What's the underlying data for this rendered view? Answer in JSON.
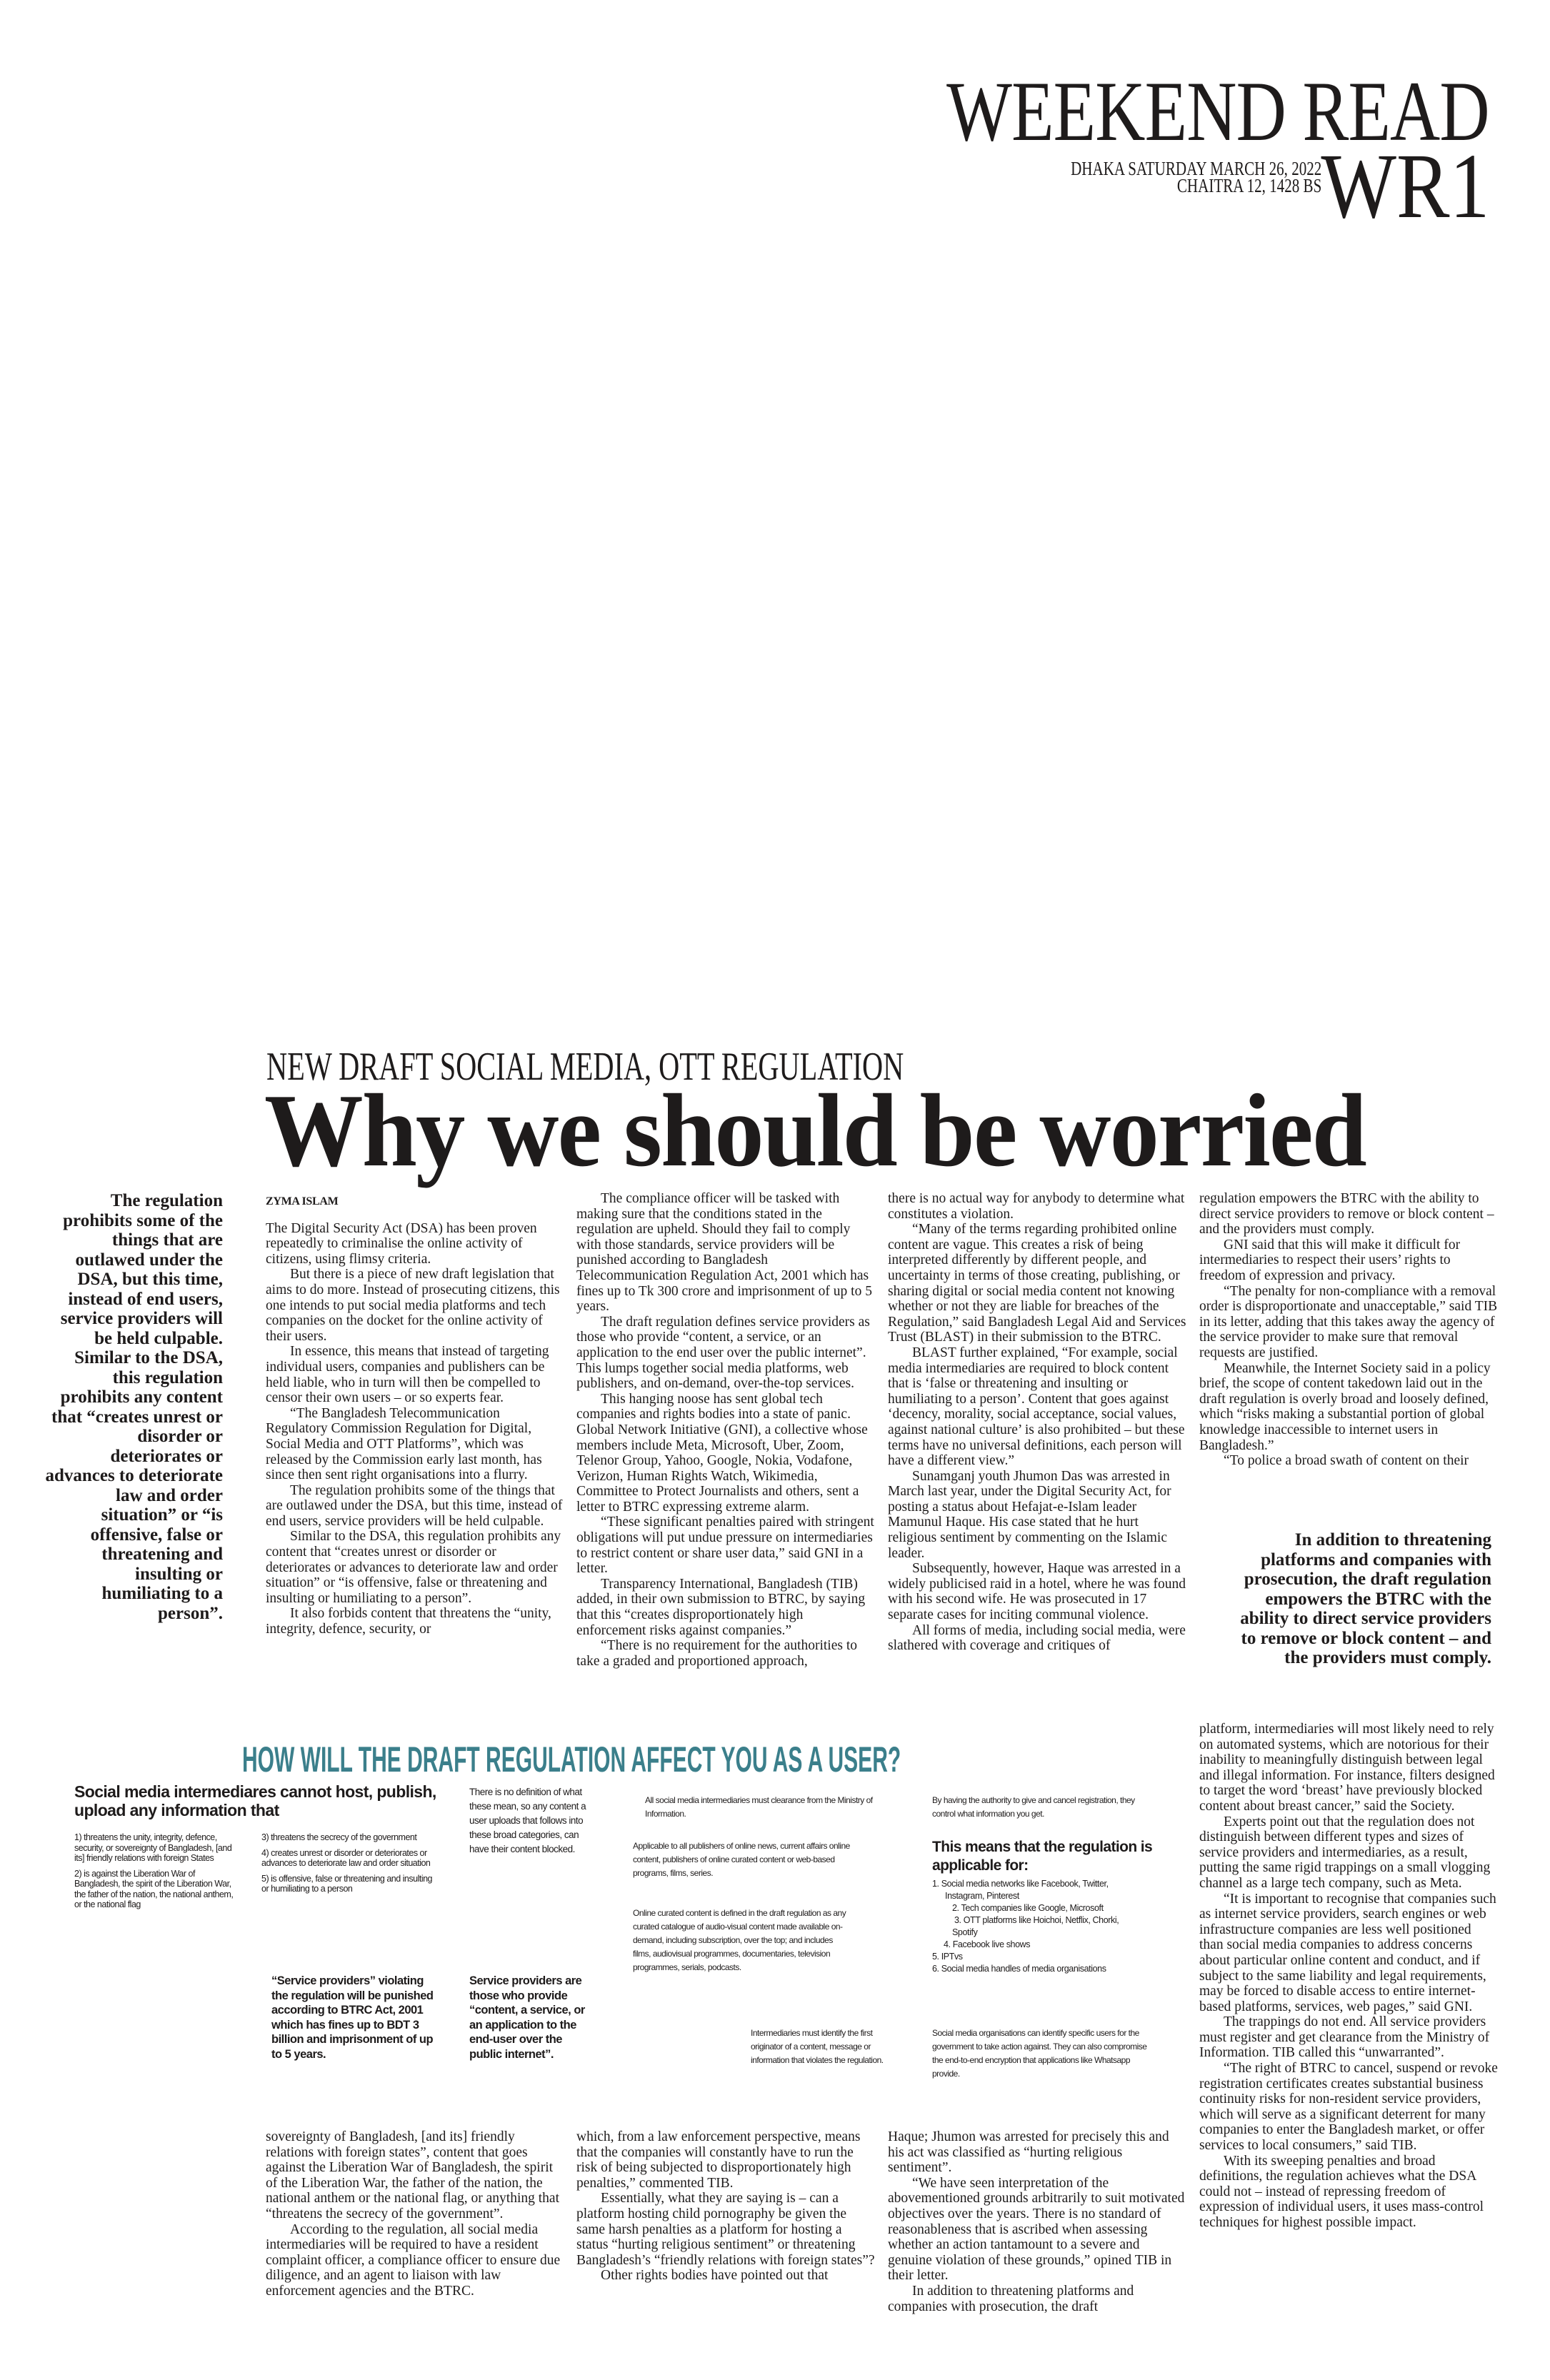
{
  "masthead": {
    "section": "WEEKEND READ",
    "date_line1": "DHAKA SATURDAY MARCH 26, 2022",
    "date_line2": "CHAITRA 12, 1428 BS",
    "page": "WR1"
  },
  "article": {
    "kicker": "NEW DRAFT SOCIAL MEDIA, OTT REGULATION",
    "headline": "Why we should be worried",
    "byline": "ZYMA ISLAM",
    "pull_quote_left": "The regulation prohibits some of the things that are outlawed under the DSA, but this time, instead of end users, service providers will be held culpable. Similar to the DSA, this regulation prohibits any content that “creates unrest or disorder or deteriorates or advances to deteriorate law and order situation” or “is offensive, false or threatening and insulting or humiliating to a person”.",
    "pull_quote_right": "In addition to threatening platforms and companies with prosecution, the draft regulation empowers the BTRC with the ability to direct service providers to remove or block content – and the providers must comply.",
    "col1_top": [
      "The Digital Security Act (DSA) has been proven repeatedly to criminalise the online activity of citizens, using flimsy criteria.",
      "But there is a piece of new draft legislation that aims to do more. Instead of prosecuting citizens, this one intends to put social media platforms and tech companies on the docket for the online activity of their users.",
      "In essence, this means that instead of targeting individual users, companies and publishers can be held liable, who in turn will then be compelled to censor their own users – or so experts fear.",
      "“The Bangladesh Telecommunication Regulatory Commission Regulation for Digital, Social Media and OTT Platforms”, which was released by the Commission early last month, has since then sent right organisations into a flurry.",
      "The regulation prohibits some of the things that are outlawed under the DSA, but this time, instead of end users, service providers will be held culpable.",
      "Similar to the DSA, this regulation prohibits any content that “creates unrest or disorder or deteriorates or advances to deteriorate law and order situation” or “is offensive, false or threatening and insulting or humiliating to a person”.",
      "It also forbids content that threatens the “unity, integrity, defence, security, or"
    ],
    "col2_top": [
      "The compliance officer will be tasked with making sure that the conditions stated in the regulation are upheld. Should they fail to comply with those standards, service providers will be punished according to Bangladesh Telecommunication Regulation Act, 2001 which has fines up to Tk 300 crore and imprisonment of up to 5 years.",
      "The draft regulation defines service providers as those who provide “content, a service, or an application to the end user over the public internet”. This lumps together social media platforms, web publishers, and on-demand, over-the-top services.",
      "This hanging noose has sent global tech companies and rights bodies into a state of panic. Global Network Initiative (GNI), a collective whose members include Meta, Microsoft, Uber, Zoom, Telenor Group, Yahoo, Google, Nokia, Vodafone, Verizon, Human Rights Watch, Wikimedia, Committee to Protect Journalists and others, sent a letter to BTRC expressing extreme alarm.",
      "“These significant penalties paired with stringent obligations will put undue pressure on intermediaries to restrict content or share user data,” said GNI in a letter.",
      "Transparency International, Bangladesh (TIB) added, in their own submission to BTRC, by saying that this “creates disproportionately high enforcement risks against companies.”",
      "“There is no requirement for the authorities to take a graded and proportioned approach,"
    ],
    "col3_top": [
      "there is no actual way for anybody to determine what constitutes a violation.",
      "“Many of the terms regarding prohibited online content are vague. This creates a risk of being interpreted differently by different people, and uncertainty in terms of those creating, publishing, or sharing digital or social media content not knowing whether or not they are liable for breaches of the Regulation,” said Bangladesh Legal Aid and Services Trust (BLAST) in their submission to the BTRC.",
      "BLAST further explained, “For example, social media intermediaries are required to block content that is ‘false or threatening and insulting or humiliating to a person’. Content that goes against ‘decency, morality, social acceptance, social values, against national culture’ is also prohibited – but these terms have no universal definitions, each person will have a different view.”",
      "Sunamganj youth Jhumon Das was arrested in March last year, under the Digital Security Act, for posting a status about Hefajat-e-Islam leader Mamunul Haque. His case stated that he hurt religious sentiment by commenting on the Islamic leader.",
      "Subsequently, however, Haque was arrested in a widely publicised raid in a hotel, where he was found with his second wife. He was prosecuted in 17 separate cases for inciting communal violence.",
      "All forms of media, including social media, were slathered with coverage and critiques of"
    ],
    "col4_top": [
      "regulation empowers the BTRC with the ability to direct service providers to remove or block content – and the providers must comply.",
      "GNI said that this will make it difficult for intermediaries to respect their users’ rights to freedom of expression and privacy.",
      "“The penalty for non-compliance with a removal order is disproportionate and unacceptable,” said TIB in its letter, adding that this takes away the agency of the service provider to make sure that removal requests are justified.",
      "Meanwhile, the Internet Society said in a policy brief, the scope of content takedown laid out in the draft regulation is overly broad and loosely defined, which “risks making a substantial portion of global knowledge inaccessible to internet users in Bangladesh.”",
      "“To police a broad swath of content on their"
    ],
    "col4_bottom": [
      "platform, intermediaries will most likely need to rely on automated systems, which are notorious for their inability to meaningfully distinguish between legal and illegal information. For instance, filters designed to target the word ‘breast’ have previously blocked content about breast cancer,” said the Society.",
      "Experts point out that the regulation does not distinguish between different types and sizes of service providers and intermediaries, as a result, putting the same rigid trappings on a small vlogging channel as a large tech company, such as Meta.",
      "“It is important to recognise that companies such as internet service providers, search engines or web infrastructure companies are less well positioned than social media companies to address concerns about particular online content and conduct, and if subject to the same liability and legal requirements, may be forced to disable access to entire internet-based platforms, services, web pages,” said GNI.",
      "The trappings do not end. All service providers must register and get clearance from the Ministry of Information. TIB called this “unwarranted”.",
      "“The right of BTRC to cancel, suspend or revoke registration certificates creates substantial business continuity risks for non-resident service providers, which will serve as a significant deterrent for many companies to enter the Bangladesh market, or offer services to local consumers,” said TIB.",
      "With its sweeping penalties and broad definitions, the regulation achieves what the DSA could not – instead of repressing freedom of expression of individual users, it uses mass-control techniques for highest possible impact."
    ],
    "col1_bottom": [
      "sovereignty of Bangladesh, [and its] friendly relations with foreign states”, content that goes against the Liberation War of Bangladesh, the spirit of the Liberation War, the father of the nation, the national anthem or the national flag, or anything that “threatens the secrecy of the government”.",
      "According to the regulation, all social media intermediaries will be required to have a resident complaint officer, a compliance officer to ensure due diligence, and an agent to liaison with law enforcement agencies and the BTRC."
    ],
    "col2_bottom": [
      "which, from a law enforcement perspective, means that the companies will constantly have to run the risk of being subjected to disproportionately high penalties,” commented TIB.",
      "Essentially, what they are saying is – can a platform hosting child pornography be given the same harsh penalties as a platform for hosting a status “hurting religious sentiment” or threatening Bangladesh’s “friendly relations with foreign states”?",
      "Other rights bodies have pointed out that"
    ],
    "col3_bottom": [
      "Haque; Jhumon was arrested for precisely this and his act was classified as “hurting religious sentiment”.",
      "“We have seen interpretation of the abovementioned grounds arbitrarily to suit motivated objectives over the years. There is no standard of reasonableness that is ascribed when assessing whether an action tantamount to a severe and genuine violation of these grounds,” opined TIB in their letter.",
      "In addition to threatening platforms and companies with prosecution, the draft"
    ]
  },
  "infographic": {
    "accent_color": "#3b7f8b",
    "title": "HOW WILL THE DRAFT REGULATION AFFECT YOU AS A USER?",
    "prohibited_heading": "Social media intermediares cannot host, publish, upload any information that",
    "prohibited_left": [
      "1) threatens the unity, integrity, defence, security, or sovereignty of Bangladesh, [and its] friendly relations with foreign States",
      "2) is against the Liberation War of Bangladesh, the spirit of the Liberation War, the father of the nation, the national anthem, or the national flag"
    ],
    "prohibited_right": [
      "3) threatens the secrecy of the government",
      "4) creates unrest or disorder or deteriorates or advances to deteriorate law and order situation",
      "5) is offensive, false or threatening and insulting or humiliating to a person"
    ],
    "penalty_note": "“Service providers” violating the regulation will be punished according to BTRC Act, 2001 which has fines up to BDT 3 billion and imprisonment of up to 5 years.",
    "no_definition_note": "There is no definition of what these mean, so any content a user uploads that follows into these broad categories, can have their content blocked.",
    "service_providers_note": "Service providers are those who provide “content, a service, or an application to the end-user over the public internet”.",
    "clearance_note": "All social media intermediaries must clearance from the Ministry of Information.",
    "applicable_note": "Applicable to all publishers of online news, current affairs online content, publishers of online curated content or web-based programs, films, series.",
    "curated_note": "Online curated content is defined in the draft regulation as any curated catalogue of audio-visual content made available on-demand, including subscription, over the top; and includes films, audiovisual programmes, documentaries, television programmes, serials, podcasts.",
    "originator_note": "Intermediaries must identify the first originator of a content, message or information that violates the regulation.",
    "registration_note": "By having the authority to give and cancel registration, they control what information you get.",
    "applicable_heading": "This means that the regulation is applicable for:",
    "applicable_list": [
      "1. Social media networks like Facebook, Twitter,",
      "Instagram, Pinterest",
      "2. Tech companies like Google, Microsoft",
      "3. OTT platforms like Hoichoi, Netflix, Chorki,",
      "Spotify",
      "4. Facebook live shows",
      "5. IPTvs",
      "6. Social media handles of media organisations"
    ],
    "identify_note": "Social media organisations can identify specific users for the government to take action against. They can also compromise the end-to-end encryption that applications like Whatsapp provide."
  }
}
